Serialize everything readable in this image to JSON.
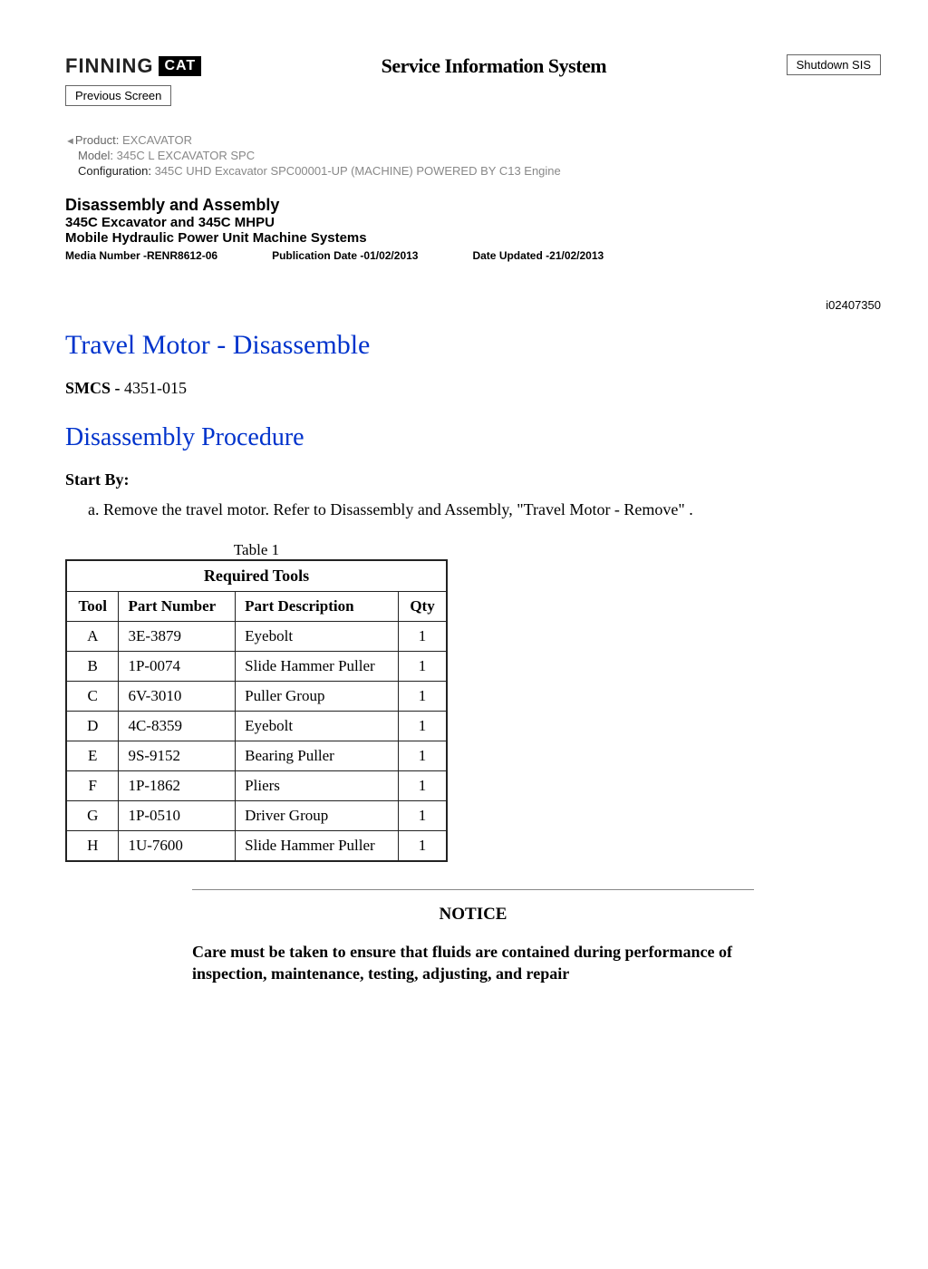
{
  "header": {
    "logo_text": "FINNING",
    "logo_badge": "CAT",
    "sis_title": "Service Information System",
    "shutdown_label": "Shutdown SIS",
    "prev_screen_label": "Previous Screen"
  },
  "product_meta": {
    "product_label": "Product:",
    "product_value": "EXCAVATOR",
    "model_label": "Model:",
    "model_value": "345C L EXCAVATOR SPC",
    "config_label": "Configuration:",
    "config_value": "345C UHD Excavator SPC00001-UP (MACHINE) POWERED BY C13 Engine"
  },
  "doc_header": {
    "title": "Disassembly and Assembly",
    "sub1": "345C Excavator and 345C MHPU",
    "sub2": "Mobile Hydraulic Power Unit Machine Systems",
    "media_number": "Media Number -RENR8612-06",
    "pub_date": "Publication Date -01/02/2013",
    "date_updated": "Date Updated -21/02/2013",
    "doc_id": "i02407350"
  },
  "content": {
    "main_title": "Travel Motor - Disassemble",
    "smcs_label": "SMCS -",
    "smcs_value": "4351-015",
    "section_title": "Disassembly Procedure",
    "startby_label": "Start By:",
    "startby_items": [
      "Remove the travel motor. Refer to Disassembly and Assembly, \"Travel Motor - Remove\" ."
    ]
  },
  "table": {
    "caption": "Table 1",
    "title": "Required Tools",
    "columns": [
      "Tool",
      "Part Number",
      "Part Description",
      "Qty"
    ],
    "col_align": [
      "center",
      "left",
      "left",
      "center"
    ],
    "rows": [
      [
        "A",
        "3E-3879",
        "Eyebolt",
        "1"
      ],
      [
        "B",
        "1P-0074",
        "Slide Hammer Puller",
        "1"
      ],
      [
        "C",
        "6V-3010",
        "Puller Group",
        "1"
      ],
      [
        "D",
        "4C-8359",
        "Eyebolt",
        "1"
      ],
      [
        "E",
        "9S-9152",
        "Bearing Puller",
        "1"
      ],
      [
        "F",
        "1P-1862",
        "Pliers",
        "1"
      ],
      [
        "G",
        "1P-0510",
        "Driver Group",
        "1"
      ],
      [
        "H",
        "1U-7600",
        "Slide Hammer Puller",
        "1"
      ]
    ]
  },
  "notice": {
    "title": "NOTICE",
    "text": "Care must be taken to ensure that fluids are contained during performance of inspection, maintenance, testing, adjusting, and repair"
  }
}
